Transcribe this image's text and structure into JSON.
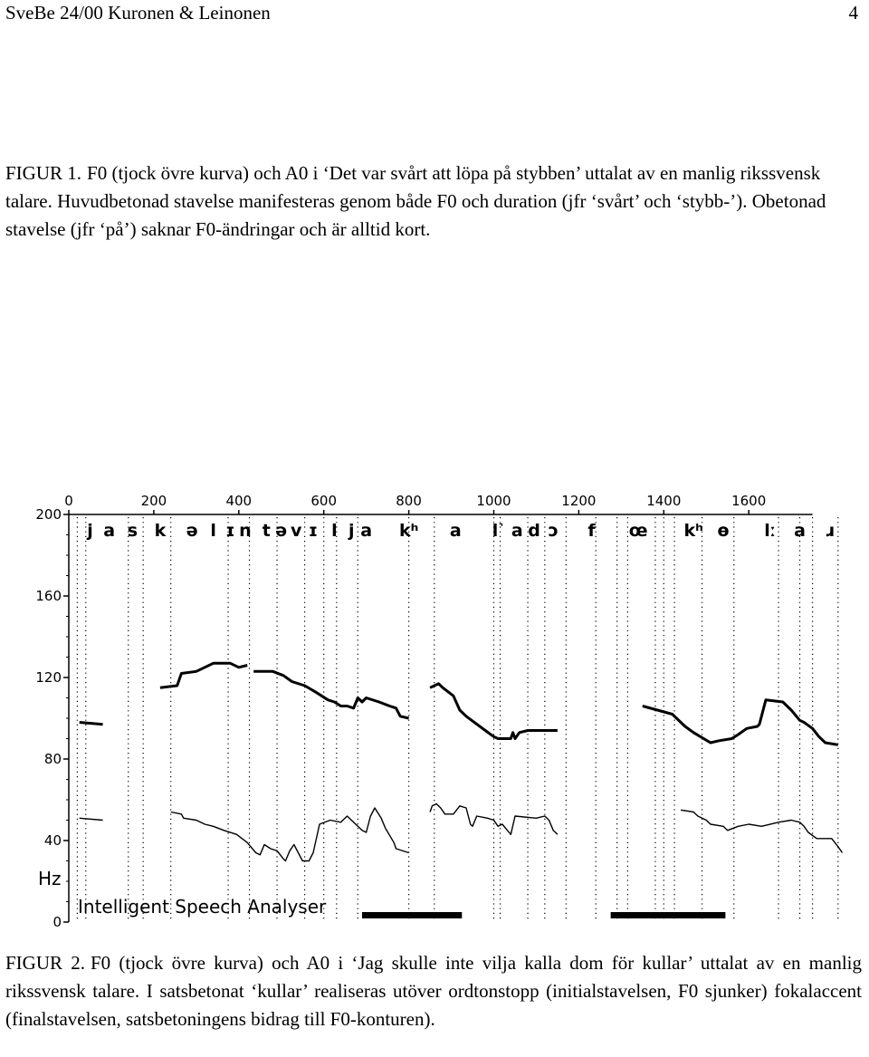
{
  "header": {
    "running_title": "SveBe 24/00 Kuronen & Leinonen",
    "page_number": "4"
  },
  "figure1": {
    "label": "FIGUR 1.",
    "text": "F0 (tjock övre kurva) och A0 i ‘Det var svårt att löpa på stybben’ uttalat av en manlig rikssvensk talare. Huvudbetonad stavelse manifesteras genom både F0 och duration (jfr ‘svårt’ och ‘stybb-’). Obetonad stavelse (jfr ‘på’) saknar F0-ändringar och är alltid kort."
  },
  "figure2": {
    "label": "FIGUR 2.",
    "text": "F0 (tjock övre kurva) och A0 i ‘Jag skulle inte vilja kalla dom för kullar’ uttalat av en manlig rikssvensk talare. I satsbetonat ‘kullar’ realiseras utöver ordtonstopp (initialstavelsen, F0 sjunker) fokalaccent (finalstavelsen, satsbetoningens bidrag till F0-konturen)."
  },
  "chart_data": {
    "type": "line",
    "software_label": "Intelligent Speech Analyser",
    "xlim": [
      0,
      1750
    ],
    "ylim": [
      0,
      200
    ],
    "ylabel": "Hz",
    "xticks": [
      "0",
      "200",
      "400",
      "600",
      "800",
      "1000",
      "1200",
      "1400",
      "1600"
    ],
    "yticks": [
      "0",
      "40",
      "80",
      "120",
      "160",
      "200"
    ],
    "segments": [
      {
        "label": "j",
        "x": 50
      },
      {
        "label": "a",
        "x": 95
      },
      {
        "label": "s",
        "x": 150
      },
      {
        "label": "k",
        "x": 215
      },
      {
        "label": "ə",
        "x": 290
      },
      {
        "label": "l",
        "x": 340
      },
      {
        "label": "ɪ",
        "x": 380
      },
      {
        "label": "n",
        "x": 415
      },
      {
        "label": "t",
        "x": 465
      },
      {
        "label": "ə",
        "x": 500
      },
      {
        "label": "v",
        "x": 535
      },
      {
        "label": "ɪ",
        "x": 575
      },
      {
        "label": "l",
        "x": 625
      },
      {
        "label": "j",
        "x": 665
      },
      {
        "label": "a",
        "x": 700
      },
      {
        "label": "kʰ",
        "x": 800
      },
      {
        "label": "a",
        "x": 910
      },
      {
        "label": "l˺",
        "x": 1010
      },
      {
        "label": "a",
        "x": 1055
      },
      {
        "label": "d",
        "x": 1095
      },
      {
        "label": "ɔ",
        "x": 1140
      },
      {
        "label": "f",
        "x": 1230
      },
      {
        "label": "œ",
        "x": 1340
      },
      {
        "label": "kʰ",
        "x": 1470
      },
      {
        "label": "ɵ",
        "x": 1540
      },
      {
        "label": "lː",
        "x": 1650
      },
      {
        "label": "a",
        "x": 1720
      },
      {
        "label": "ɹ",
        "x": 1790
      }
    ],
    "series": [
      {
        "values": [
          [
            [
              25,
              98
            ],
            [
              80,
              97
            ]
          ],
          [
            [
              215,
              115
            ],
            [
              255,
              116
            ],
            [
              265,
              122
            ],
            [
              300,
              123
            ],
            [
              320,
              125
            ],
            [
              340,
              127
            ],
            [
              380,
              127
            ],
            [
              400,
              125
            ],
            [
              420,
              126
            ]
          ],
          [
            [
              435,
              123
            ],
            [
              480,
              123
            ],
            [
              505,
              121
            ],
            [
              525,
              118
            ],
            [
              555,
              116
            ],
            [
              580,
              113
            ],
            [
              610,
              109
            ],
            [
              625,
              108
            ],
            [
              640,
              106
            ],
            [
              655,
              106
            ],
            [
              670,
              105
            ],
            [
              680,
              110
            ],
            [
              690,
              108
            ],
            [
              700,
              110
            ],
            [
              730,
              108
            ],
            [
              755,
              106
            ],
            [
              770,
              105
            ],
            [
              780,
              101
            ],
            [
              800,
              100
            ]
          ],
          [
            [
              850,
              115
            ],
            [
              870,
              117
            ],
            [
              880,
              115
            ],
            [
              905,
              111
            ],
            [
              920,
              104
            ],
            [
              935,
              101
            ],
            [
              980,
              94
            ],
            [
              1000,
              91
            ],
            [
              1010,
              90
            ],
            [
              1040,
              90
            ],
            [
              1045,
              93
            ],
            [
              1050,
              90
            ],
            [
              1060,
              93
            ],
            [
              1080,
              94
            ],
            [
              1150,
              94
            ]
          ],
          [
            [
              1350,
              106
            ],
            [
              1385,
              104
            ],
            [
              1420,
              102
            ],
            [
              1450,
              96
            ],
            [
              1470,
              93
            ],
            [
              1510,
              88
            ],
            [
              1530,
              89
            ],
            [
              1560,
              90
            ],
            [
              1575,
              92
            ],
            [
              1595,
              95
            ],
            [
              1620,
              96
            ],
            [
              1625,
              97
            ],
            [
              1640,
              109
            ],
            [
              1680,
              108
            ],
            [
              1700,
              104
            ],
            [
              1720,
              99
            ],
            [
              1730,
              98
            ],
            [
              1750,
              95
            ],
            [
              1765,
              91
            ],
            [
              1780,
              88
            ],
            [
              1810,
              87
            ]
          ]
        ]
      },
      {
        "values": [
          [
            [
              25,
              51
            ],
            [
              80,
              50
            ]
          ],
          [
            [
              240,
              54
            ],
            [
              265,
              53
            ],
            [
              270,
              51
            ],
            [
              300,
              50
            ],
            [
              320,
              48
            ],
            [
              340,
              47
            ],
            [
              365,
              45
            ],
            [
              395,
              43
            ],
            [
              420,
              39
            ],
            [
              440,
              34
            ],
            [
              450,
              33
            ],
            [
              460,
              38
            ],
            [
              475,
              36
            ],
            [
              490,
              35
            ],
            [
              505,
              31
            ],
            [
              510,
              30
            ],
            [
              520,
              35
            ],
            [
              530,
              38
            ],
            [
              550,
              30
            ],
            [
              565,
              30
            ],
            [
              575,
              34
            ],
            [
              590,
              48
            ],
            [
              615,
              50
            ],
            [
              640,
              49
            ],
            [
              655,
              52
            ],
            [
              670,
              49
            ],
            [
              690,
              45
            ],
            [
              700,
              44
            ],
            [
              710,
              52
            ],
            [
              720,
              56
            ],
            [
              735,
              51
            ],
            [
              745,
              46
            ],
            [
              765,
              39
            ],
            [
              770,
              36
            ],
            [
              800,
              34
            ]
          ],
          [
            [
              850,
              54
            ],
            [
              855,
              57
            ],
            [
              865,
              58
            ],
            [
              875,
              56
            ],
            [
              885,
              53
            ],
            [
              905,
              53
            ],
            [
              920,
              57
            ],
            [
              935,
              56
            ],
            [
              945,
              48
            ],
            [
              950,
              47
            ],
            [
              960,
              52
            ],
            [
              985,
              51
            ],
            [
              1000,
              50
            ],
            [
              1010,
              47
            ],
            [
              1020,
              48
            ],
            [
              1040,
              43
            ],
            [
              1050,
              52
            ],
            [
              1100,
              51
            ],
            [
              1120,
              52
            ],
            [
              1130,
              50
            ],
            [
              1140,
              45
            ],
            [
              1150,
              43
            ]
          ],
          [
            [
              1440,
              55
            ],
            [
              1470,
              54
            ],
            [
              1480,
              52
            ],
            [
              1500,
              50
            ],
            [
              1510,
              48
            ],
            [
              1540,
              47
            ],
            [
              1550,
              45
            ],
            [
              1575,
              47
            ],
            [
              1600,
              48
            ],
            [
              1630,
              47
            ],
            [
              1670,
              49
            ],
            [
              1700,
              50
            ],
            [
              1720,
              49
            ],
            [
              1730,
              47
            ],
            [
              1740,
              44
            ],
            [
              1760,
              41
            ],
            [
              1795,
              41
            ],
            [
              1810,
              37
            ],
            [
              1820,
              34
            ]
          ]
        ]
      }
    ],
    "duration_bars": [
      [
        690,
        925
      ],
      [
        1275,
        1545
      ]
    ]
  }
}
